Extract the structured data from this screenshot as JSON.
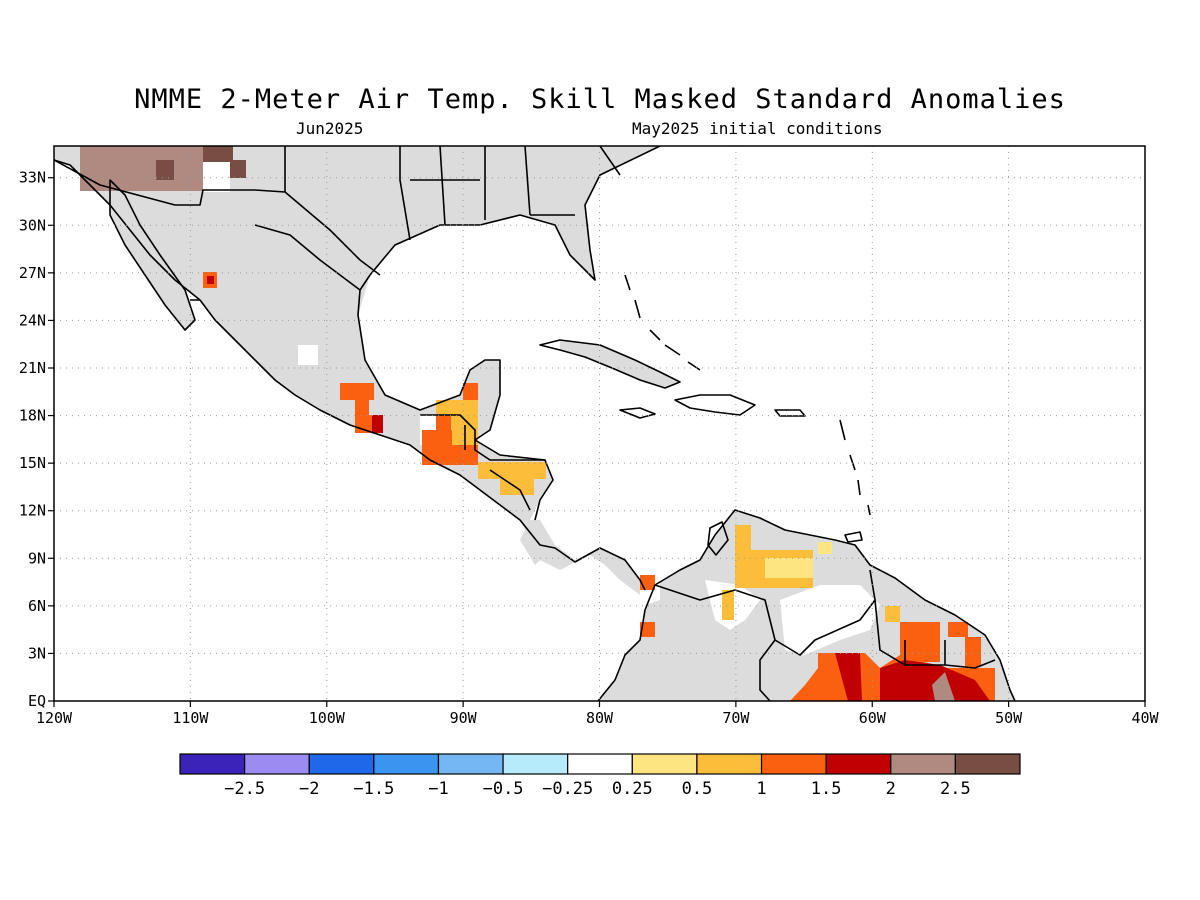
{
  "header": {
    "title": "NMME 2-Meter Air Temp. Skill Masked Standard Anomalies",
    "target_month": "Jun2025",
    "initial_conditions": "May2025 initial conditions"
  },
  "map": {
    "lon_range": [
      -120,
      -40
    ],
    "lat_range": [
      0,
      35
    ],
    "x_tick_labels": [
      "120W",
      "110W",
      "100W",
      "90W",
      "80W",
      "70W",
      "60W",
      "50W",
      "40W"
    ],
    "y_tick_labels": [
      "EQ",
      "3N",
      "6N",
      "9N",
      "12N",
      "15N",
      "18N",
      "21N",
      "24N",
      "27N",
      "30N",
      "33N"
    ],
    "grid": true,
    "masked_color": "#dcdcdc",
    "land_outline_color": "#000000"
  },
  "colorbar": {
    "colors": [
      "#3b22b8",
      "#9c8cf2",
      "#1f68ea",
      "#3b95f0",
      "#75b6f4",
      "#b5ebfa",
      "#ffffff",
      "#fde682",
      "#fcbe3a",
      "#fb6010",
      "#c00000",
      "#b08a80",
      "#784e44"
    ],
    "labels": [
      "-2.5",
      "-2",
      "-1.5",
      "-1",
      "-0.5",
      "-0.25",
      "0.25",
      "0.5",
      "1",
      "1.5",
      "2",
      "2.5"
    ]
  },
  "chart_data": {
    "type": "heatmap",
    "title": "NMME 2-Meter Air Temp. Skill Masked Standard Anomalies",
    "subtitle": "Jun2025  May2025 initial conditions",
    "region": "Mexico, Central America, Caribbean, northern South America",
    "units": "standard anomalies",
    "anomaly_regions": [
      {
        "area": "Southwest US (Arizona/New Mexico)",
        "lon": [
          -116,
          -106
        ],
        "lat": [
          32,
          35
        ],
        "category": "2 to 2.5"
      },
      {
        "area": "Gulf of California coast",
        "lon": [
          -109,
          -108
        ],
        "lat": [
          26,
          27
        ],
        "category": "1.5 to 2"
      },
      {
        "area": "Southern Mexico (Oaxaca)",
        "lon": [
          -98,
          -96
        ],
        "lat": [
          17,
          20
        ],
        "category": "1 to 1.5"
      },
      {
        "area": "Guatemala / Belize",
        "lon": [
          -92,
          -89
        ],
        "lat": [
          15,
          19
        ],
        "category": "0.5 to 1.5"
      },
      {
        "area": "Honduras",
        "lon": [
          -88,
          -84
        ],
        "lat": [
          13,
          15
        ],
        "category": "0.5 to 1"
      },
      {
        "area": "Northern Venezuela",
        "lon": [
          -70,
          -63
        ],
        "lat": [
          7,
          11
        ],
        "category": "0.5 to 1"
      },
      {
        "area": "Western Colombia",
        "lon": [
          -77,
          -76
        ],
        "lat": [
          4,
          7
        ],
        "category": "1 to 1.5"
      },
      {
        "area": "Guianas",
        "lon": [
          -57,
          -51
        ],
        "lat": [
          2,
          5
        ],
        "category": "1 to 1.5"
      },
      {
        "area": "Northern Brazil / Amazon",
        "lon": [
          -66,
          -50
        ],
        "lat": [
          0,
          3
        ],
        "category": "1 to 2.5"
      }
    ]
  }
}
